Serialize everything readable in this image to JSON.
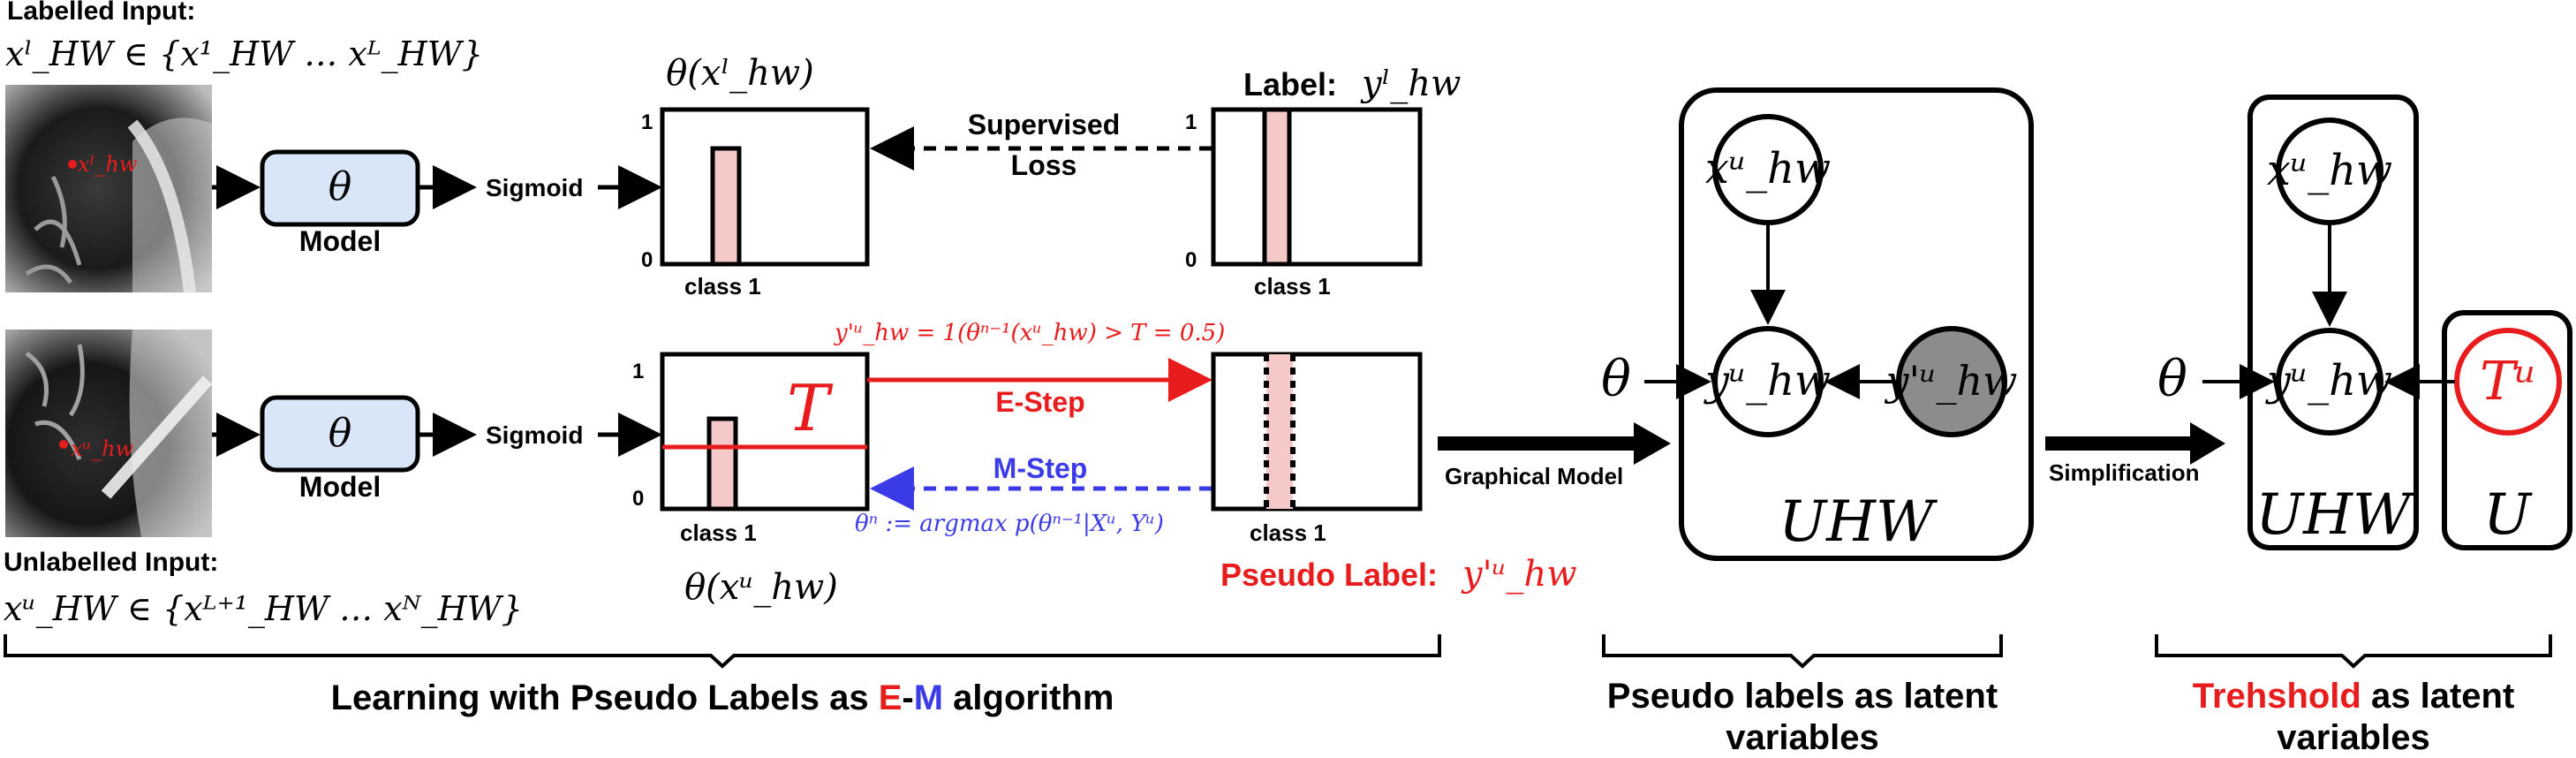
{
  "colors": {
    "red": "#e81c1c",
    "blue": "#3b3be8",
    "bar_fill": "#f6c9c9",
    "model_fill": "#d8e6f8",
    "latent_fill": "#8c8c8c",
    "black": "#000000"
  },
  "top_left": {
    "title": "Labelled Input:",
    "set_expr": "xˡ_HW ∈ {x¹_HW … xᴸ_HW}",
    "point_label": "xˡ_hw"
  },
  "bottom_left": {
    "title": "Unlabelled Input:",
    "set_expr": "xᵘ_HW ∈ {xᴸ⁺¹_HW … xᴺ_HW}",
    "point_label": "xᵘ_hw"
  },
  "model": {
    "symbol": "θ",
    "label": "Model",
    "sigmoid": "Sigmoid"
  },
  "prediction": {
    "top_title": "θ(xˡ_hw)",
    "bottom_title": "θ(xᵘ_hw)",
    "ytick_1": "1",
    "ytick_0": "0",
    "class_label": "class 1",
    "threshold_symbol": "T"
  },
  "ground_truth": {
    "label_prefix": "Label:",
    "label_var": "yˡ_hw",
    "pseudo_prefix": "Pseudo Label:",
    "pseudo_var": "y'ᵘ_hw"
  },
  "arrows": {
    "supervised_line1": "Supervised",
    "supervised_line2": "Loss",
    "estep_label": "E-Step",
    "estep_formula": "y'ᵘ_hw = 1(θⁿ⁻¹(xᵘ_hw) > T = 0.5)",
    "mstep_label": "M-Step",
    "mstep_formula": "θⁿ := argmax p(θⁿ⁻¹|Xᵘ, Yᵘ)",
    "graphical_model": "Graphical Model",
    "simplification": "Simplification"
  },
  "graph1": {
    "theta": "θ",
    "node_x": "xᵘ_hw",
    "node_y": "yᵘ_hw",
    "node_yp": "y'ᵘ_hw",
    "plate": "UHW"
  },
  "graph2": {
    "theta": "θ",
    "node_x": "xᵘ_hw",
    "node_y": "yᵘ_hw",
    "node_t": "Tᵘ",
    "plate1": "UHW",
    "plate2": "U"
  },
  "captions": {
    "em_prefix": "Learning with Pseudo Labels as ",
    "em_e": "E",
    "em_dash": "-",
    "em_m": "M",
    "em_suffix": " algorithm",
    "pseudo_line1": "Pseudo labels as latent",
    "pseudo_line2": "variables",
    "thresh_word": "Trehshold",
    "thresh_rest": " as latent",
    "thresh_line2": "variables"
  }
}
